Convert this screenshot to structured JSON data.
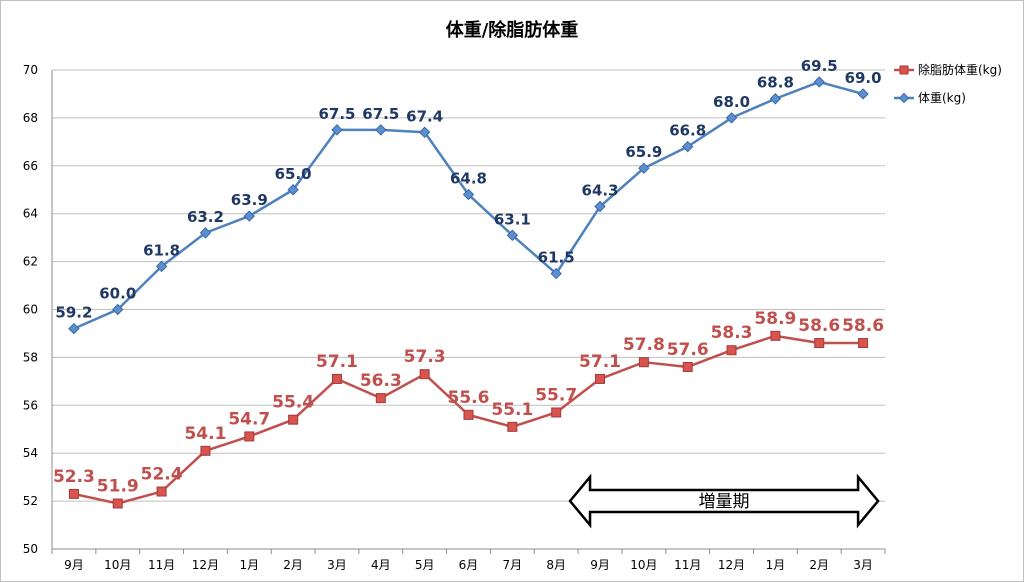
{
  "chart_data": {
    "type": "line",
    "title": "体重/除脂肪体重",
    "xlabel": "",
    "ylabel": "",
    "categories": [
      "9月",
      "10月",
      "11月",
      "12月",
      "1月",
      "2月",
      "3月",
      "4月",
      "5月",
      "6月",
      "7月",
      "8月",
      "9月",
      "10月",
      "11月",
      "12月",
      "1月",
      "2月",
      "3月"
    ],
    "ylim": [
      50,
      70
    ],
    "yticks": [
      50,
      52,
      54,
      56,
      58,
      60,
      62,
      64,
      66,
      68,
      70
    ],
    "grid": true,
    "legend_position": "right",
    "series": [
      {
        "name": "除脂肪体重(kg)",
        "color": "#c0504d",
        "marker": "square",
        "values": [
          52.3,
          51.9,
          52.4,
          54.1,
          54.7,
          55.4,
          57.1,
          56.3,
          57.3,
          55.6,
          55.1,
          55.7,
          57.1,
          57.8,
          57.6,
          58.3,
          58.9,
          58.6,
          58.6
        ]
      },
      {
        "name": "体重(kg)",
        "color": "#4f81bd",
        "marker": "diamond",
        "values": [
          59.2,
          60.0,
          61.8,
          63.2,
          63.9,
          65.0,
          67.5,
          67.5,
          67.4,
          64.8,
          63.1,
          61.5,
          64.3,
          65.9,
          66.8,
          68.0,
          68.8,
          69.5,
          69.0
        ]
      }
    ],
    "annotation": {
      "text": "増量期",
      "from_category_index": 12,
      "to_category_index": 18
    }
  }
}
